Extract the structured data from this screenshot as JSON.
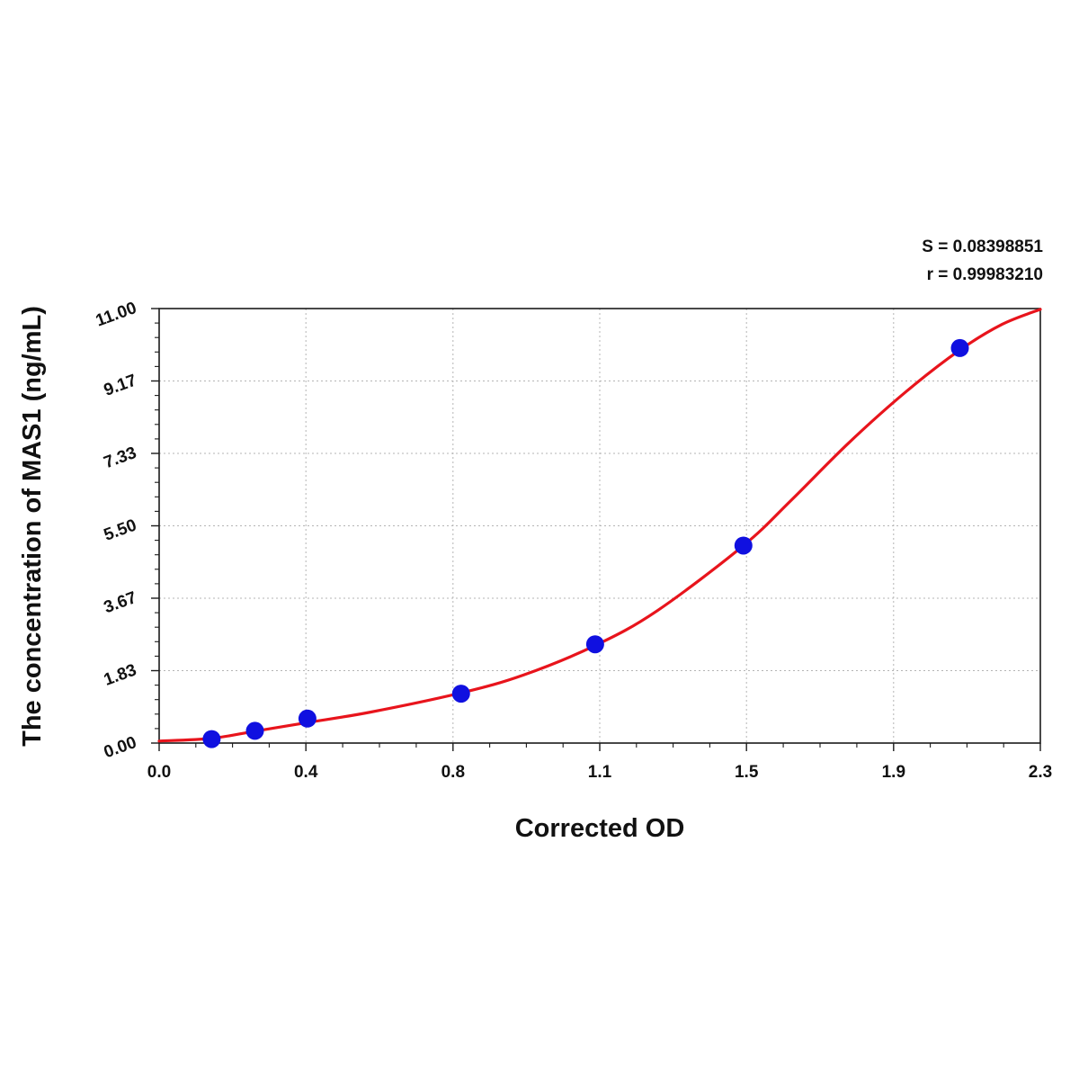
{
  "chart_data": {
    "type": "scatter",
    "xlabel": "Corrected OD",
    "ylabel": "The concentration of MAS1 (ng/mL)",
    "xlim": [
      0.0,
      2.3
    ],
    "ylim": [
      0.0,
      11.0
    ],
    "x_ticks": [
      "0.0",
      "0.4",
      "0.8",
      "1.1",
      "1.5",
      "1.9",
      "2.3"
    ],
    "x_tick_values": [
      0.0,
      0.383,
      0.767,
      1.15,
      1.533,
      1.917,
      2.3
    ],
    "y_ticks": [
      "0.00",
      "1.83",
      "3.67",
      "5.50",
      "7.33",
      "9.17",
      "11.00"
    ],
    "y_tick_values": [
      0.0,
      1.833,
      3.667,
      5.5,
      7.333,
      9.167,
      11.0
    ],
    "grid": true,
    "stats": {
      "s_text": "S = 0.08398851",
      "r_text": "r = 0.99983210"
    },
    "series": [
      {
        "marker_color": "#1010e0",
        "points": [
          {
            "x": 0.137,
            "y": 0.1
          },
          {
            "x": 0.25,
            "y": 0.31
          },
          {
            "x": 0.387,
            "y": 0.62
          },
          {
            "x": 0.788,
            "y": 1.25
          },
          {
            "x": 1.138,
            "y": 2.5
          },
          {
            "x": 1.525,
            "y": 5.0
          },
          {
            "x": 2.09,
            "y": 10.0
          }
        ]
      },
      {
        "line_color": "#e8141c",
        "curve": [
          {
            "x": 0.0,
            "y": 0.05
          },
          {
            "x": 0.137,
            "y": 0.12
          },
          {
            "x": 0.25,
            "y": 0.3
          },
          {
            "x": 0.387,
            "y": 0.52
          },
          {
            "x": 0.55,
            "y": 0.78
          },
          {
            "x": 0.788,
            "y": 1.27
          },
          {
            "x": 0.95,
            "y": 1.72
          },
          {
            "x": 1.138,
            "y": 2.47
          },
          {
            "x": 1.3,
            "y": 3.35
          },
          {
            "x": 1.525,
            "y": 5.0
          },
          {
            "x": 1.65,
            "y": 6.15
          },
          {
            "x": 1.8,
            "y": 7.6
          },
          {
            "x": 1.95,
            "y": 8.9
          },
          {
            "x": 2.09,
            "y": 9.95
          },
          {
            "x": 2.2,
            "y": 10.6
          },
          {
            "x": 2.3,
            "y": 10.98
          }
        ]
      }
    ]
  }
}
